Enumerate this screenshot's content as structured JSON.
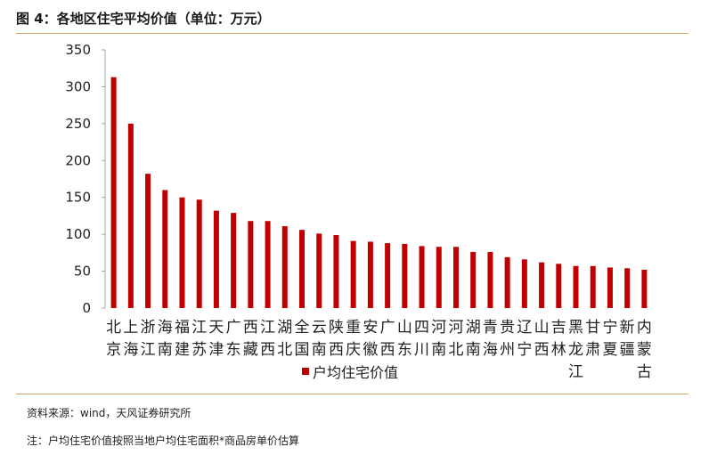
{
  "header": {
    "title": "图 4：各地区住宅平均价值（单位：万元）"
  },
  "footer": {
    "source": "资料来源：wind，天风证券研究所",
    "note": "注：户均住宅价值按照当地户均住宅面积*商品房单价估算"
  },
  "chart_data": {
    "type": "bar",
    "title": "图 4：各地区住宅平均价值（单位：万元）",
    "xlabel": "",
    "ylabel": "",
    "ylim": [
      0,
      350
    ],
    "yticks": [
      0,
      50,
      100,
      150,
      200,
      250,
      300,
      350
    ],
    "grid": false,
    "legend": "bottom-center",
    "bar_color": "#c00000",
    "categories": [
      "北京",
      "上海",
      "浙江",
      "海南",
      "福建",
      "江苏",
      "天津",
      "广东",
      "西藏",
      "江西",
      "湖北",
      "全国",
      "云南",
      "陕西",
      "重庆",
      "安徽",
      "广西",
      "山东",
      "四川",
      "河南",
      "河北",
      "湖南",
      "青海",
      "贵州",
      "辽宁",
      "山西",
      "吉林",
      "黑龙江",
      "甘肃",
      "宁夏",
      "新疆",
      "内蒙古"
    ],
    "series": [
      {
        "name": "户均住宅价值",
        "values": [
          313,
          250,
          182,
          160,
          150,
          147,
          132,
          129,
          118,
          118,
          111,
          106,
          101,
          99,
          91,
          90,
          88,
          87,
          84,
          83,
          83,
          76,
          76,
          69,
          66,
          62,
          60,
          57,
          57,
          55,
          54,
          52
        ]
      }
    ]
  }
}
